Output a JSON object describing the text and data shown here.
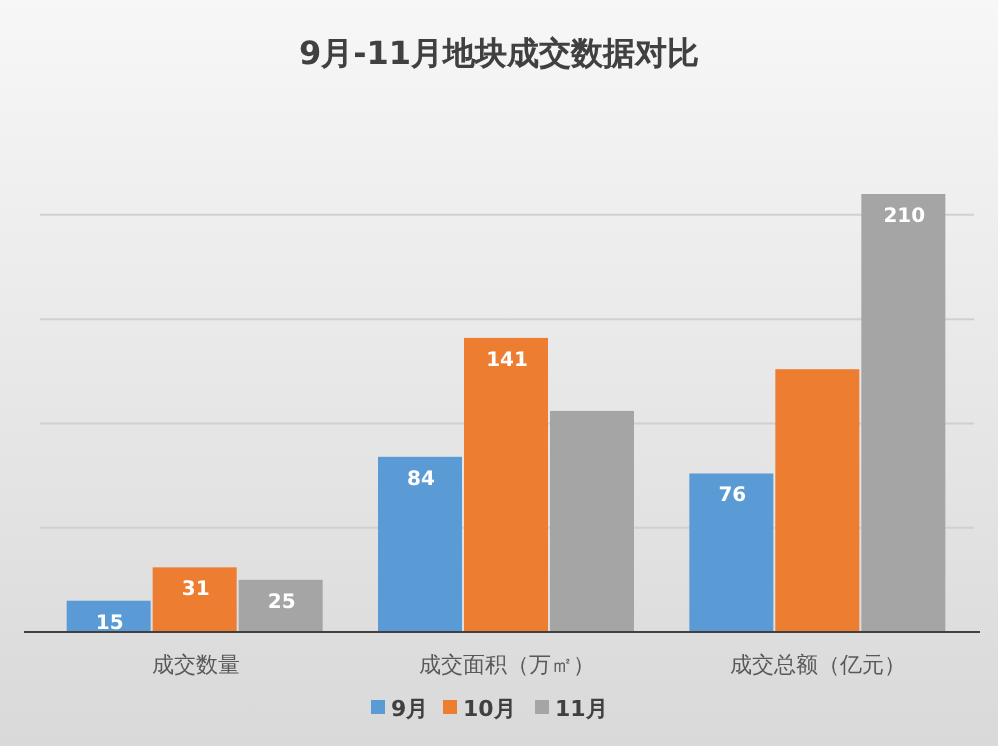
{
  "chart_data": {
    "type": "bar",
    "title": "9月-11月地块成交数据对比",
    "categories": [
      "成交数量",
      "成交面积（万㎡）",
      "成交总额（亿元）"
    ],
    "series": [
      {
        "name": "9月",
        "color": "#5b9bd5",
        "values": [
          15,
          84,
          76
        ],
        "value_labels": [
          "15",
          "84",
          "76"
        ]
      },
      {
        "name": "10月",
        "color": "#ed7d31",
        "values": [
          31,
          141,
          126
        ],
        "value_labels": [
          "31",
          "141",
          null
        ]
      },
      {
        "name": "11月",
        "color": "#a5a5a5",
        "values": [
          25,
          106,
          210
        ],
        "value_labels": [
          "25",
          null,
          "210"
        ]
      }
    ],
    "yticks": [
      {
        "value": 50,
        "label": null
      },
      {
        "value": 100,
        "label": null
      },
      {
        "value": 150,
        "label": null
      },
      {
        "value": 200,
        "label": null
      }
    ],
    "grid": "y",
    "legend": "bottom",
    "tick_labels": "x"
  }
}
